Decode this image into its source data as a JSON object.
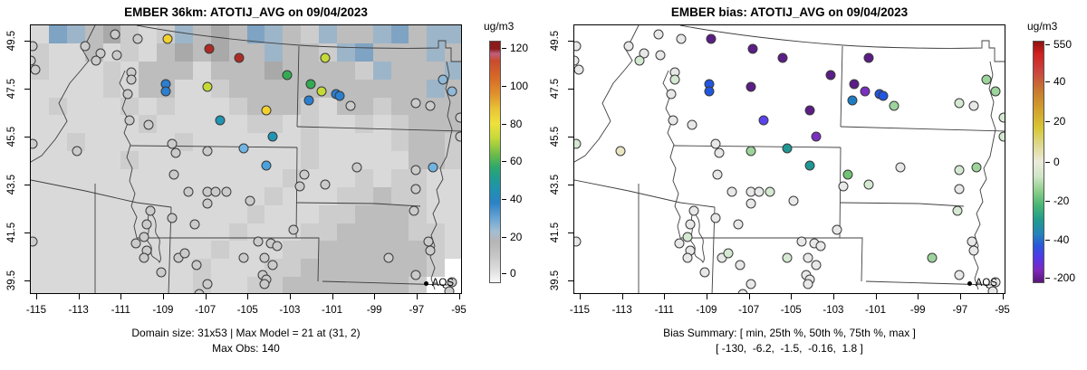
{
  "panels": [
    {
      "title": "EMBER 36km: ATOTIJ_AVG on 09/04/2023",
      "caption1": "Domain size: 31x53 | Max Model = 21 at (31, 2)",
      "caption2": "Max Obs: 140",
      "legend_label": "AQS",
      "colorbar": {
        "label": "ug/m3",
        "ticks": [
          {
            "label": "120",
            "f": 0.03
          },
          {
            "label": "100",
            "f": 0.187
          },
          {
            "label": "80",
            "f": 0.343
          },
          {
            "label": "60",
            "f": 0.497
          },
          {
            "label": "40",
            "f": 0.653
          },
          {
            "label": "20",
            "f": 0.81
          },
          {
            "label": "0",
            "f": 0.959
          }
        ],
        "gradient": [
          [
            "0%",
            "#8b1a1a"
          ],
          [
            "3%",
            "#8b1a1a"
          ],
          [
            "5%",
            "#bf5f7d"
          ],
          [
            "8%",
            "#c94b2e"
          ],
          [
            "15%",
            "#d76a27"
          ],
          [
            "22%",
            "#e0932d"
          ],
          [
            "28%",
            "#e9c335"
          ],
          [
            "34%",
            "#eee13c"
          ],
          [
            "40%",
            "#c6d93a"
          ],
          [
            "47%",
            "#6cbc49"
          ],
          [
            "52%",
            "#2fa96a"
          ],
          [
            "56%",
            "#219e8d"
          ],
          [
            "61%",
            "#1f93ad"
          ],
          [
            "67%",
            "#2b82c6"
          ],
          [
            "74%",
            "#6fa8d5"
          ],
          [
            "79%",
            "#a3bed2"
          ],
          [
            "83%",
            "#b5b5b5"
          ],
          [
            "89%",
            "#c6c6c6"
          ],
          [
            "95%",
            "#dedede"
          ],
          [
            "100%",
            "#fafafa"
          ]
        ]
      }
    },
    {
      "title": "EMBER bias: ATOTIJ_AVG on 09/04/2023",
      "caption1": "Bias Summary: [ min, 25th %, 50th %, 75th %, max ]",
      "caption2": "[ -130,  -6.2,  -1.5,  -0.16,  1.8 ]",
      "legend_label": "AQS",
      "colorbar": {
        "label": "ug/m3",
        "ticks": [
          {
            "label": "550",
            "f": 0.015
          },
          {
            "label": "40",
            "f": 0.168
          },
          {
            "label": "20",
            "f": 0.332
          },
          {
            "label": "0",
            "f": 0.5
          },
          {
            "label": "-20",
            "f": 0.66
          },
          {
            "label": "-40",
            "f": 0.82
          },
          {
            "label": "-200",
            "f": 0.978
          }
        ],
        "gradient": [
          [
            "0%",
            "#8e1111"
          ],
          [
            "5%",
            "#d01f1f"
          ],
          [
            "13%",
            "#cb4840"
          ],
          [
            "20%",
            "#c8772f"
          ],
          [
            "28%",
            "#d2a02c"
          ],
          [
            "36%",
            "#d8c636"
          ],
          [
            "43%",
            "#ddd98e"
          ],
          [
            "50%",
            "#eceada"
          ],
          [
            "56%",
            "#cfe6c8"
          ],
          [
            "62%",
            "#8ecf8a"
          ],
          [
            "68%",
            "#47b673"
          ],
          [
            "74%",
            "#219c8c"
          ],
          [
            "80%",
            "#2383bb"
          ],
          [
            "85%",
            "#2a55dd"
          ],
          [
            "90%",
            "#5537e8"
          ],
          [
            "95%",
            "#7d27bd"
          ],
          [
            "100%",
            "#591679"
          ]
        ]
      }
    }
  ],
  "axes": {
    "x_ticks": [
      -115,
      -113,
      -111,
      -109,
      -107,
      -105,
      -103,
      -101,
      -99,
      -97,
      -95
    ],
    "y_ticks": [
      39.5,
      41.5,
      43.5,
      45.5,
      47.5,
      49.5
    ],
    "x_range": [
      -115.3,
      -94.85
    ],
    "y_range": [
      38.93,
      50.17
    ]
  },
  "chart_data": {
    "type": "scatter-map",
    "title_left": "EMBER 36km: ATOTIJ_AVG on 09/04/2023",
    "title_right": "EMBER bias: ATOTIJ_AVG on 09/04/2023",
    "obs_scale": {
      "label": "ug/m3",
      "ticks": [
        0,
        20,
        40,
        60,
        80,
        100,
        120
      ]
    },
    "bias_scale": {
      "label": "ug/m3",
      "ticks": [
        -200,
        -40,
        -20,
        0,
        20,
        40,
        550
      ]
    },
    "domain_size": "31x53",
    "max_model": 21,
    "max_model_at": "(31, 2)",
    "max_obs": 140,
    "bias_summary": {
      "min": -130,
      "p25": -6.2,
      "p50": -1.5,
      "p75": -0.16,
      "max": 1.8
    },
    "stations_format": [
      "lon",
      "lat",
      "obs_color_key",
      "bias_color_key"
    ],
    "obs_palette": {
      "g": "#cbcbcb",
      "y": "#f2d12e",
      "r": "#ae2a24",
      "yg": "#c6da36",
      "gr": "#33ab52",
      "b": "#2a7fd0",
      "t": "#2095b3",
      "lb": "#6fb4e2",
      "lb2": "#8fb9d9",
      "mb": "#4aa3dc"
    },
    "bias_palette": {
      "P": "#5b1d86",
      "V": "#7a2fc0",
      "I": "#5b43ee",
      "B": "#2156e0",
      "MB": "#1d7dc4",
      "T": "#1f9795",
      "G": "#72c474",
      "LG": "#9cd49c",
      "PG": "#d5e9d2",
      "PA": "#e8e8e8",
      "PY": "#eae6c4"
    },
    "stations": [
      [
        -108.8,
        49.6,
        "y",
        "P"
      ],
      [
        -106.8,
        49.2,
        "r",
        "P"
      ],
      [
        -105.4,
        48.8,
        "r",
        "P"
      ],
      [
        -101.3,
        48.8,
        "yg",
        "P"
      ],
      [
        -103.1,
        48.1,
        "gr",
        "P"
      ],
      [
        -102.0,
        47.7,
        "gr",
        "P"
      ],
      [
        -101.5,
        47.4,
        "yg",
        "V"
      ],
      [
        -100.8,
        47.3,
        "b",
        "B"
      ],
      [
        -100.6,
        47.2,
        "b",
        "B"
      ],
      [
        -102.1,
        47.0,
        "b",
        "MB"
      ],
      [
        -100.1,
        46.8,
        "g",
        "LG"
      ],
      [
        -104.1,
        46.6,
        "y",
        "P"
      ],
      [
        -106.3,
        46.2,
        "t",
        "I"
      ],
      [
        -103.8,
        45.5,
        "t",
        "V"
      ],
      [
        -108.9,
        47.7,
        "b",
        "B"
      ],
      [
        -108.9,
        47.4,
        "b",
        "B"
      ],
      [
        -106.9,
        47.6,
        "yg",
        "P"
      ],
      [
        -105.2,
        45.0,
        "lb",
        "T"
      ],
      [
        -106.9,
        44.9,
        "g",
        "LG"
      ],
      [
        -95.7,
        47.9,
        "lb2",
        "LG"
      ],
      [
        -95.3,
        47.4,
        "lb2",
        "LG"
      ],
      [
        -97.0,
        46.9,
        "g",
        "PG"
      ],
      [
        -96.3,
        46.8,
        "g",
        "PA"
      ],
      [
        -94.9,
        46.3,
        "g",
        "PG"
      ],
      [
        -94.9,
        45.5,
        "g",
        "PG"
      ],
      [
        -104.1,
        44.3,
        "mb",
        "T"
      ],
      [
        -102.3,
        43.9,
        "g",
        "G"
      ],
      [
        -102.5,
        43.4,
        "g",
        "PA"
      ],
      [
        -101.3,
        43.5,
        "g",
        "PG"
      ],
      [
        -99.8,
        44.2,
        "g",
        "PA"
      ],
      [
        -97.0,
        44.1,
        "g",
        "PG"
      ],
      [
        -96.2,
        44.2,
        "lb",
        "LG"
      ],
      [
        -97.0,
        43.3,
        "g",
        "PA"
      ],
      [
        -97.1,
        42.4,
        "g",
        "PG"
      ],
      [
        -102.8,
        41.6,
        "g",
        "PA"
      ],
      [
        -98.3,
        40.4,
        "g",
        "LG"
      ],
      [
        -97.0,
        39.7,
        "g",
        "PA"
      ],
      [
        -111.3,
        49.8,
        "g",
        "PA"
      ],
      [
        -110.2,
        49.6,
        "g",
        "PA"
      ],
      [
        -112.7,
        49.3,
        "g",
        "PA"
      ],
      [
        -112.0,
        49.0,
        "g",
        "PA"
      ],
      [
        -112.2,
        48.7,
        "g",
        "PG"
      ],
      [
        -111.2,
        48.9,
        "g",
        "PA"
      ],
      [
        -110.5,
        48.2,
        "g",
        "PA"
      ],
      [
        -110.5,
        47.9,
        "g",
        "PG"
      ],
      [
        -110.7,
        47.3,
        "g",
        "PA"
      ],
      [
        -109.7,
        46.0,
        "g",
        "PA"
      ],
      [
        -110.6,
        46.2,
        "g",
        "PA"
      ],
      [
        -115.2,
        45.2,
        "g",
        "PG"
      ],
      [
        -113.1,
        44.9,
        "g",
        "PY"
      ],
      [
        -108.6,
        45.2,
        "g",
        "PA"
      ],
      [
        -108.4,
        44.8,
        "g",
        "PA"
      ],
      [
        -108.5,
        43.9,
        "g",
        "PA"
      ],
      [
        -107.8,
        43.2,
        "g",
        "PA"
      ],
      [
        -106.9,
        43.2,
        "g",
        "PA"
      ],
      [
        -106.5,
        43.2,
        "g",
        "PA"
      ],
      [
        -106.0,
        43.2,
        "g",
        "PG"
      ],
      [
        -106.9,
        42.7,
        "g",
        "PA"
      ],
      [
        -104.9,
        42.8,
        "g",
        "PA"
      ],
      [
        -108.6,
        42.1,
        "g",
        "PA"
      ],
      [
        -107.5,
        41.8,
        "g",
        "PA"
      ],
      [
        -109.6,
        42.4,
        "g",
        "PA"
      ],
      [
        -109.8,
        41.8,
        "g",
        "PA"
      ],
      [
        -109.9,
        41.3,
        "g",
        "PG"
      ],
      [
        -110.3,
        41.0,
        "g",
        "PA"
      ],
      [
        -109.8,
        40.7,
        "g",
        "PA"
      ],
      [
        -109.9,
        40.4,
        "g",
        "PA"
      ],
      [
        -109.1,
        39.8,
        "g",
        "PA"
      ],
      [
        -108.3,
        40.4,
        "g",
        "PA"
      ],
      [
        -108.0,
        40.6,
        "g",
        "PG"
      ],
      [
        -105.2,
        40.4,
        "g",
        "PG"
      ],
      [
        -107.4,
        40.1,
        "g",
        "PA"
      ],
      [
        -106.9,
        39.3,
        "g",
        "PA"
      ],
      [
        -107.3,
        38.9,
        "g",
        "PA"
      ],
      [
        -104.5,
        41.1,
        "g",
        "PA"
      ],
      [
        -103.9,
        41.0,
        "g",
        "PA"
      ],
      [
        -103.6,
        40.9,
        "g",
        "PA"
      ],
      [
        -104.2,
        40.4,
        "g",
        "PA"
      ],
      [
        -103.8,
        40.1,
        "g",
        "PA"
      ],
      [
        -104.3,
        39.7,
        "g",
        "PA"
      ],
      [
        -104.1,
        39.5,
        "g",
        "PA"
      ],
      [
        -104.2,
        39.3,
        "g",
        "PA"
      ],
      [
        -96.4,
        41.1,
        "g",
        "PA"
      ],
      [
        -96.3,
        40.7,
        "g",
        "PA"
      ],
      [
        -95.3,
        39.4,
        "g",
        "PA"
      ],
      [
        -95.4,
        39.0,
        "g",
        "PA"
      ],
      [
        -115.2,
        49.3,
        "g",
        "PA"
      ],
      [
        -115.3,
        48.7,
        "g",
        "PA"
      ],
      [
        -115.1,
        48.3,
        "g",
        "PA"
      ],
      [
        -115.2,
        41.1,
        "g",
        "PA"
      ]
    ]
  },
  "raster": {
    "palette": {
      ".": "#d9d9d9",
      "o": "#cdcdcd",
      "m": "#bdbdbd",
      "d": "#a9a9a9",
      "b": "#9db5c9",
      "B": "#7fa3c2",
      "w": "#e9e9e9",
      "W": "#ffffff"
    },
    "rows": [
      ".Bbmdo.obmdmBbmobmmbBmbb",
      "o..m.o.mdmdmmbmmobBmmmbm",
      "o...o.mmm.mmmdmmmmobmmmb",
      "....o.mm..ommmmmmmmmmmbm",
      ".o...o.o...ommmo.mmommmm",
      "......o.....oo.o..o.ommm",
      "..o.....o......o....ommo",
      ".....o.........o.....mmo",
      "..............o...o.oo..",
      ".............o...oomoo..",
      "............o...oommmo..",
      "...........o...oommmmoo.",
      "..........o...oommmmmmo.",
      ".........o...oommmmmmmoW",
      ".........o..oommmmmmmoWW"
    ]
  },
  "borders": {
    "stroke": "#3f3f3f",
    "paths": [
      "M117,0 C170,10 240,18 297,22 C340,25 410,26 450,25 L450,17 L458,17 L458,25 L464,25 L464,40 L477,40",
      "M71,0 L64,14 L57,27 L64,39 L55,50 L43,64 L31,86 L40,106 L27,126 L12,144 L0,151",
      "M104,50 L98,64 L106,77 L101,92 L108,105 L103,119 L110,132 L106,146 L112,158 L109,172 L115,186 L111,200 L117,212 L114,222 L117,235",
      "M110,133 L294,135",
      "M296,23 L294,112",
      "M294,112 L477,117",
      "M294,135 L293,235",
      "M293,196 L380,197 L430,200",
      "M322,283 L460,287",
      "M117,235 L293,235",
      "M293,235 L318,235 L317,283",
      "M155,201 L152,298",
      "M0,171 L60,183 L117,196 L155,201",
      "M71,175 L71,298",
      "M132,206 C126,214 133,222 129,232 C126,242 135,240 133,250 C132,258 139,256 142,262 C146,257 140,250 142,242 C144,232 136,234 138,224 C139,214 135,212 132,206 Z",
      "M459,40 L462,55 L458,70 L463,85 L460,100 L465,115 L462,130 L459,145 L452,158 L455,170 L448,182 L451,195 L444,208 L448,220 L442,232 L446,244 L441,256 L446,268 L442,280 L446,292"
    ]
  }
}
